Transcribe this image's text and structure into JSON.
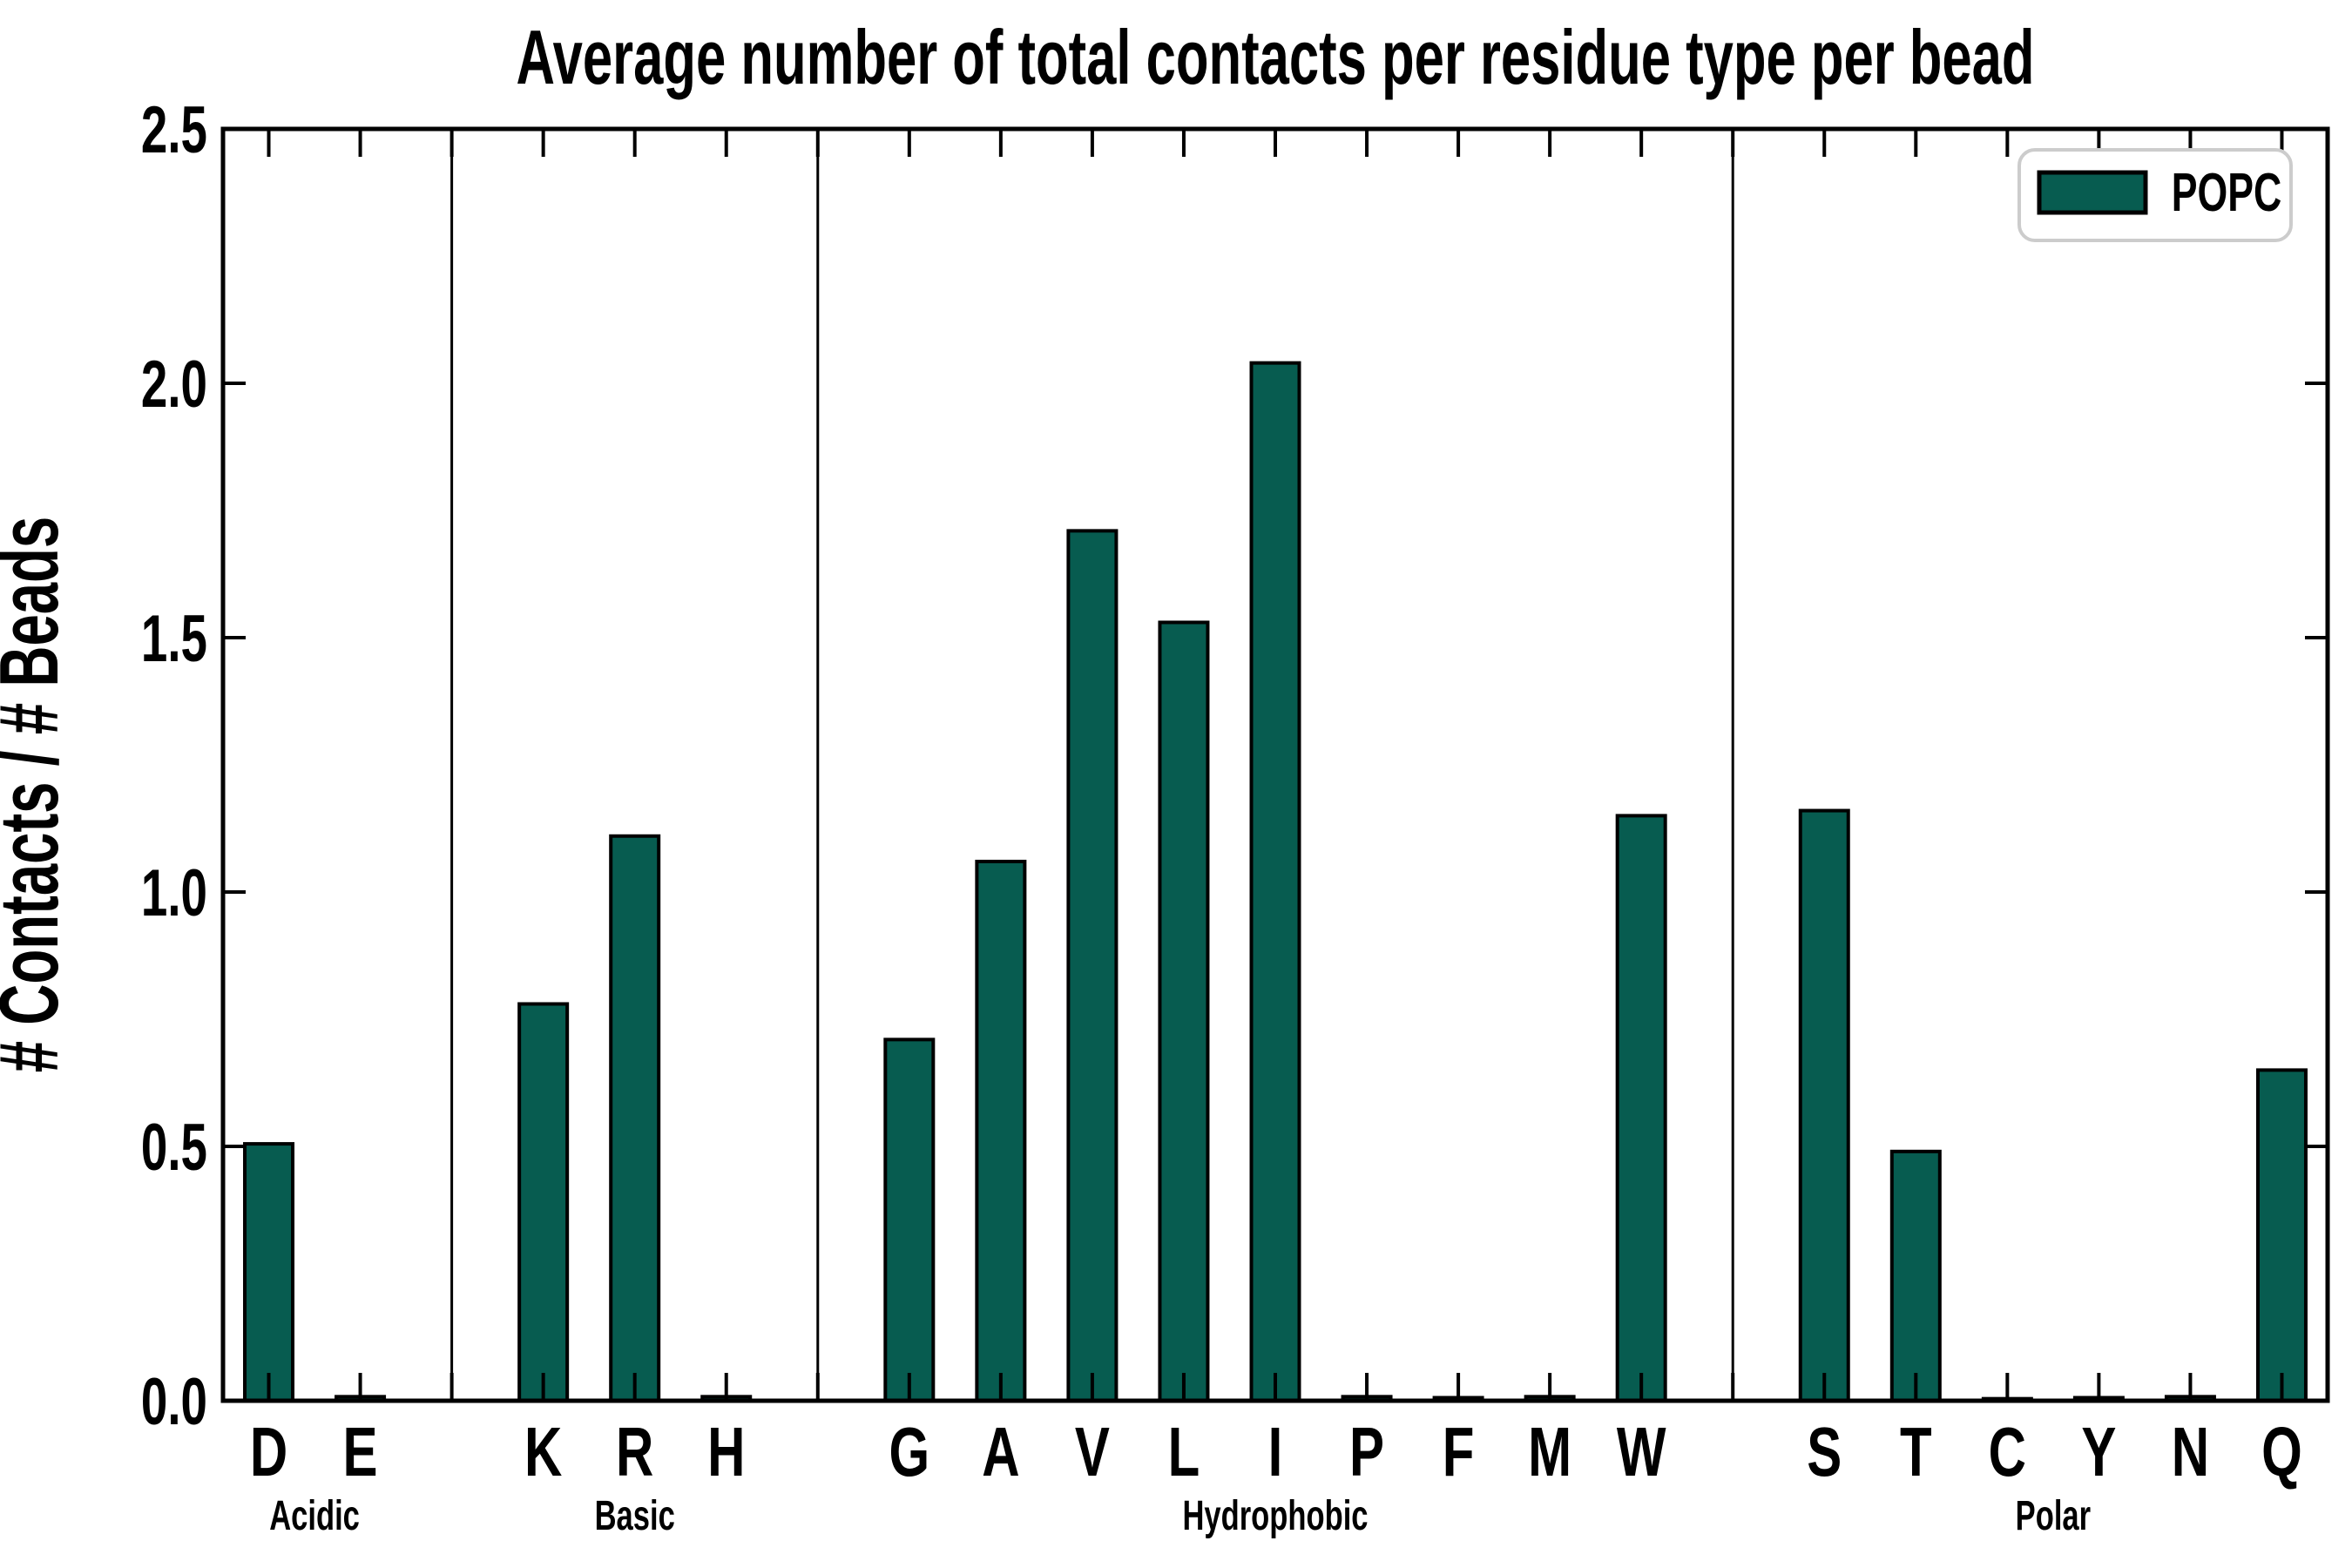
{
  "title": "Average number of total contacts per residue type per bead",
  "legend": {
    "label": "POPC",
    "position": "upper right"
  },
  "colors": {
    "bar_fill": "#075C50",
    "bar_edge": "#000000",
    "axis": "#000000",
    "legend_border": "#cccccc",
    "background": "#ffffff"
  },
  "chart_data": {
    "type": "bar",
    "title": "Average number of total contacts per residue type per bead",
    "xlabel": "",
    "ylabel": "# Contacts / # Beads",
    "ylim": [
      0,
      2.5
    ],
    "yticks": [
      "0.0",
      "0.5",
      "1.0",
      "1.5",
      "2.0",
      "2.5"
    ],
    "grid": false,
    "group_dividers": true,
    "legend_entries": [
      "POPC"
    ],
    "categories": [
      "D",
      "E",
      "K",
      "R",
      "H",
      "G",
      "A",
      "V",
      "L",
      "I",
      "P",
      "F",
      "M",
      "W",
      "S",
      "T",
      "C",
      "Y",
      "N",
      "Q"
    ],
    "series": [
      {
        "name": "POPC",
        "values": [
          0.505,
          0.008,
          0.78,
          1.11,
          0.008,
          0.71,
          1.06,
          1.71,
          1.53,
          2.04,
          0.008,
          0.006,
          0.008,
          1.15,
          1.16,
          0.49,
          0.004,
          0.006,
          0.008,
          0.65
        ]
      }
    ],
    "groups": [
      {
        "label": "Acidic",
        "categories": [
          "D",
          "E"
        ]
      },
      {
        "label": "Basic",
        "categories": [
          "K",
          "R",
          "H"
        ]
      },
      {
        "label": "Hydrophobic",
        "categories": [
          "G",
          "A",
          "V",
          "L",
          "I",
          "P",
          "F",
          "M",
          "W"
        ]
      },
      {
        "label": "Polar",
        "categories": [
          "S",
          "T",
          "C",
          "Y",
          "N",
          "Q"
        ]
      }
    ]
  }
}
